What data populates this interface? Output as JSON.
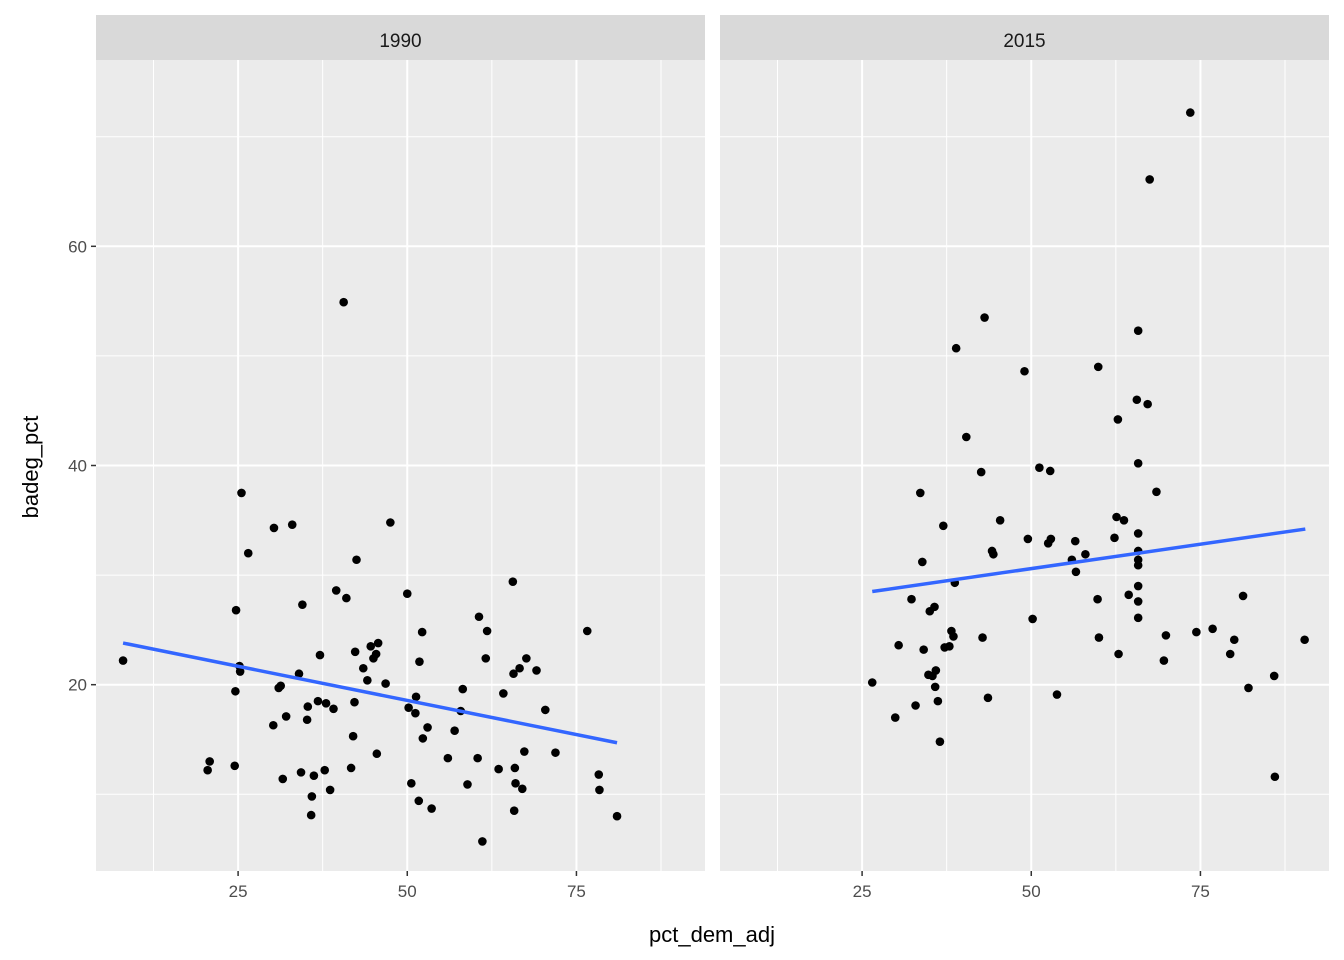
{
  "chart_data": {
    "type": "scatter",
    "xlabel": "pct_dem_adj",
    "ylabel": "badeg_pct",
    "xlim": [
      4,
      94
    ],
    "ylim": [
      3,
      77
    ],
    "x_ticks": [
      25,
      50,
      75
    ],
    "x_minor_ticks": [
      12.5,
      37.5,
      62.5,
      87.5
    ],
    "y_ticks": [
      20,
      40,
      60
    ],
    "y_minor_ticks": [
      10,
      30,
      50,
      70
    ],
    "grid": true,
    "colors": {
      "point": "#000000",
      "trend": "#3366FF",
      "panel_bg": "#EBEBEB",
      "strip_bg": "#D9D9D9",
      "grid": "#FFFFFF"
    },
    "panels": [
      {
        "strip": "1990",
        "trend": {
          "x0": 8,
          "y0": 23.8,
          "x1": 81,
          "y1": 14.7
        },
        "points": [
          [
            8.0,
            22.2
          ],
          [
            20.5,
            12.2
          ],
          [
            20.8,
            13.0
          ],
          [
            24.5,
            12.6
          ],
          [
            24.6,
            19.4
          ],
          [
            24.7,
            26.8
          ],
          [
            25.2,
            21.7
          ],
          [
            25.3,
            21.2
          ],
          [
            25.5,
            37.5
          ],
          [
            26.5,
            32.0
          ],
          [
            30.2,
            16.3
          ],
          [
            30.3,
            34.3
          ],
          [
            31.0,
            19.7
          ],
          [
            31.3,
            19.9
          ],
          [
            31.6,
            11.4
          ],
          [
            32.1,
            17.1
          ],
          [
            33.0,
            34.6
          ],
          [
            34.0,
            21.0
          ],
          [
            34.3,
            12.0
          ],
          [
            34.5,
            27.3
          ],
          [
            35.2,
            16.8
          ],
          [
            35.3,
            18.0
          ],
          [
            35.8,
            8.1
          ],
          [
            35.9,
            9.8
          ],
          [
            36.2,
            11.7
          ],
          [
            36.8,
            18.5
          ],
          [
            37.1,
            22.7
          ],
          [
            37.8,
            12.2
          ],
          [
            38.0,
            18.3
          ],
          [
            38.6,
            10.4
          ],
          [
            39.1,
            17.8
          ],
          [
            39.5,
            28.6
          ],
          [
            40.6,
            54.9
          ],
          [
            41.0,
            27.9
          ],
          [
            41.7,
            12.4
          ],
          [
            42.0,
            15.3
          ],
          [
            42.2,
            18.4
          ],
          [
            42.3,
            23.0
          ],
          [
            42.5,
            31.4
          ],
          [
            43.5,
            21.5
          ],
          [
            44.1,
            20.4
          ],
          [
            44.6,
            23.5
          ],
          [
            45.0,
            22.4
          ],
          [
            45.4,
            22.8
          ],
          [
            45.5,
            13.7
          ],
          [
            45.7,
            23.8
          ],
          [
            46.8,
            20.1
          ],
          [
            47.5,
            34.8
          ],
          [
            50.0,
            28.3
          ],
          [
            50.2,
            17.9
          ],
          [
            50.6,
            11.0
          ],
          [
            51.2,
            17.4
          ],
          [
            51.3,
            18.9
          ],
          [
            51.7,
            9.4
          ],
          [
            51.8,
            22.1
          ],
          [
            52.2,
            24.8
          ],
          [
            52.3,
            15.1
          ],
          [
            53.0,
            16.1
          ],
          [
            53.6,
            8.7
          ],
          [
            56.0,
            13.3
          ],
          [
            57.0,
            15.8
          ],
          [
            57.9,
            17.6
          ],
          [
            58.2,
            19.6
          ],
          [
            58.9,
            10.9
          ],
          [
            60.4,
            13.3
          ],
          [
            60.6,
            26.2
          ],
          [
            61.1,
            5.7
          ],
          [
            61.6,
            22.4
          ],
          [
            61.8,
            24.9
          ],
          [
            63.5,
            12.3
          ],
          [
            64.2,
            19.2
          ],
          [
            65.6,
            29.4
          ],
          [
            65.7,
            21.0
          ],
          [
            65.8,
            8.5
          ],
          [
            65.9,
            12.4
          ],
          [
            66.0,
            11.0
          ],
          [
            66.6,
            21.5
          ],
          [
            67.0,
            10.5
          ],
          [
            67.3,
            13.9
          ],
          [
            67.6,
            22.4
          ],
          [
            69.1,
            21.3
          ],
          [
            70.4,
            17.7
          ],
          [
            71.9,
            13.8
          ],
          [
            76.6,
            24.9
          ],
          [
            78.3,
            11.8
          ],
          [
            78.4,
            10.4
          ],
          [
            81.0,
            8.0
          ]
        ]
      },
      {
        "strip": "2015",
        "trend": {
          "x0": 26.5,
          "y0": 28.5,
          "x1": 90.5,
          "y1": 34.2
        },
        "points": [
          [
            26.5,
            20.2
          ],
          [
            29.9,
            17.0
          ],
          [
            30.4,
            23.6
          ],
          [
            32.3,
            27.8
          ],
          [
            32.9,
            18.1
          ],
          [
            33.6,
            37.5
          ],
          [
            33.9,
            31.2
          ],
          [
            34.1,
            23.2
          ],
          [
            34.8,
            20.9
          ],
          [
            35.0,
            26.7
          ],
          [
            35.4,
            20.8
          ],
          [
            35.7,
            27.1
          ],
          [
            35.9,
            21.3
          ],
          [
            35.8,
            19.8
          ],
          [
            36.2,
            18.5
          ],
          [
            36.5,
            14.8
          ],
          [
            37.0,
            34.5
          ],
          [
            37.2,
            23.4
          ],
          [
            37.9,
            23.5
          ],
          [
            38.2,
            24.9
          ],
          [
            38.5,
            24.4
          ],
          [
            38.7,
            29.3
          ],
          [
            38.9,
            50.7
          ],
          [
            40.4,
            42.6
          ],
          [
            42.6,
            39.4
          ],
          [
            42.8,
            24.3
          ],
          [
            43.1,
            53.5
          ],
          [
            43.6,
            18.8
          ],
          [
            44.2,
            32.2
          ],
          [
            44.4,
            31.9
          ],
          [
            45.4,
            35.0
          ],
          [
            49.0,
            48.6
          ],
          [
            49.5,
            33.3
          ],
          [
            50.2,
            26.0
          ],
          [
            51.2,
            39.8
          ],
          [
            52.5,
            32.9
          ],
          [
            52.8,
            39.5
          ],
          [
            52.9,
            33.3
          ],
          [
            53.8,
            19.1
          ],
          [
            56.0,
            31.4
          ],
          [
            56.5,
            33.1
          ],
          [
            56.6,
            30.3
          ],
          [
            58.0,
            31.9
          ],
          [
            59.8,
            27.8
          ],
          [
            59.9,
            49.0
          ],
          [
            60.0,
            24.3
          ],
          [
            62.3,
            33.4
          ],
          [
            62.6,
            35.3
          ],
          [
            62.8,
            44.2
          ],
          [
            62.9,
            22.8
          ],
          [
            63.7,
            35.0
          ],
          [
            64.4,
            28.2
          ],
          [
            65.6,
            46.0
          ],
          [
            65.8,
            52.3
          ],
          [
            65.8,
            40.2
          ],
          [
            65.8,
            33.8
          ],
          [
            65.8,
            32.2
          ],
          [
            65.8,
            31.4
          ],
          [
            65.8,
            30.9
          ],
          [
            65.8,
            29.0
          ],
          [
            65.8,
            27.6
          ],
          [
            65.8,
            26.1
          ],
          [
            67.2,
            45.6
          ],
          [
            67.5,
            66.1
          ],
          [
            68.5,
            37.6
          ],
          [
            69.6,
            22.2
          ],
          [
            69.9,
            24.5
          ],
          [
            73.5,
            72.2
          ],
          [
            74.4,
            24.8
          ],
          [
            76.8,
            25.1
          ],
          [
            79.4,
            22.8
          ],
          [
            80.0,
            24.1
          ],
          [
            81.3,
            28.1
          ],
          [
            82.1,
            19.7
          ],
          [
            85.9,
            20.8
          ],
          [
            86.0,
            11.6
          ],
          [
            90.4,
            24.1
          ]
        ]
      }
    ]
  }
}
